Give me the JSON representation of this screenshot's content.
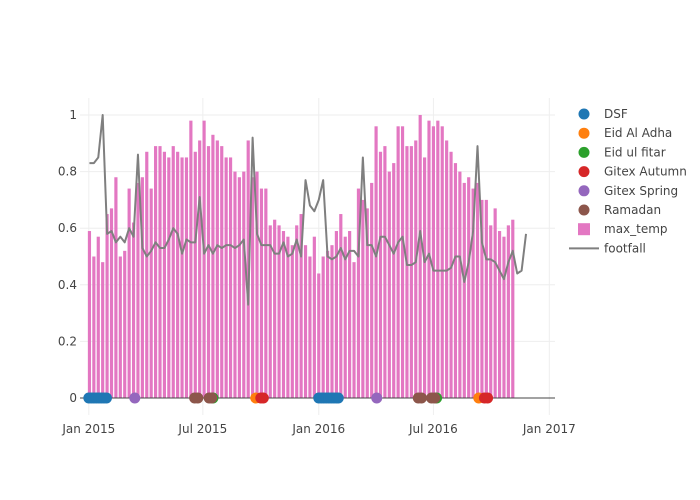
{
  "chart_data": {
    "type": "bar",
    "title": "",
    "xlabel": "",
    "ylabel": "",
    "x_range": [
      "2014-12-18",
      "2017-01-10"
    ],
    "ylim": [
      -0.06,
      1.06
    ],
    "y_ticks": [
      0,
      0.2,
      0.4,
      0.6,
      0.8,
      1
    ],
    "y_tick_labels": [
      "0",
      "0.2",
      "0.4",
      "0.6",
      "0.8",
      "1"
    ],
    "x_ticks": [
      "2015-01-01",
      "2015-07-01",
      "2016-01-01",
      "2016-07-01",
      "2017-01-01"
    ],
    "x_tick_labels": [
      "Jan 2015",
      "Jul 2015",
      "Jan 2016",
      "Jul 2016",
      "Jan 2017"
    ],
    "grid": true,
    "legend_position": "right",
    "bar_series": {
      "name": "max_temp",
      "color": "#e377c2",
      "start": "2015-01-02",
      "step_days": 7,
      "values": [
        0.59,
        0.5,
        0.57,
        0.48,
        0.65,
        0.67,
        0.78,
        0.5,
        0.52,
        0.74,
        0.62,
        0.76,
        0.78,
        0.87,
        0.74,
        0.89,
        0.89,
        0.87,
        0.85,
        0.89,
        0.87,
        0.85,
        0.85,
        0.98,
        0.87,
        0.91,
        0.98,
        0.89,
        0.93,
        0.91,
        0.89,
        0.85,
        0.85,
        0.8,
        0.78,
        0.8,
        0.91,
        0.78,
        0.8,
        0.74,
        0.74,
        0.61,
        0.63,
        0.61,
        0.59,
        0.57,
        0.54,
        0.61,
        0.65,
        0.54,
        0.5,
        0.57,
        0.44,
        0.5,
        0.52,
        0.54,
        0.59,
        0.65,
        0.57,
        0.59,
        0.48,
        0.74,
        0.7,
        0.67,
        0.76,
        0.96,
        0.87,
        0.89,
        0.8,
        0.83,
        0.96,
        0.96,
        0.89,
        0.89,
        0.91,
        1.0,
        0.85,
        0.98,
        0.96,
        0.98,
        0.96,
        0.91,
        0.87,
        0.83,
        0.8,
        0.76,
        0.78,
        0.74,
        0.76,
        0.7,
        0.7,
        0.61,
        0.67,
        0.59,
        0.57,
        0.61,
        0.63
      ]
    },
    "line_series": {
      "name": "footfall",
      "color": "#7f7f7f",
      "start": "2015-01-02",
      "step_days": 7,
      "values": [
        0.83,
        0.83,
        0.85,
        1.0,
        0.58,
        0.59,
        0.55,
        0.57,
        0.55,
        0.6,
        0.57,
        0.86,
        0.53,
        0.5,
        0.52,
        0.55,
        0.53,
        0.53,
        0.56,
        0.6,
        0.58,
        0.51,
        0.56,
        0.55,
        0.55,
        0.71,
        0.51,
        0.54,
        0.51,
        0.54,
        0.53,
        0.54,
        0.54,
        0.53,
        0.54,
        0.56,
        0.33,
        0.92,
        0.58,
        0.54,
        0.54,
        0.54,
        0.51,
        0.51,
        0.55,
        0.5,
        0.51,
        0.56,
        0.5,
        0.77,
        0.68,
        0.66,
        0.7,
        0.77,
        0.5,
        0.49,
        0.5,
        0.53,
        0.49,
        0.52,
        0.52,
        0.5,
        0.85,
        0.54,
        0.54,
        0.5,
        0.57,
        0.57,
        0.54,
        0.51,
        0.55,
        0.57,
        0.47,
        0.47,
        0.48,
        0.59,
        0.48,
        0.51,
        0.45,
        0.45,
        0.45,
        0.45,
        0.46,
        0.5,
        0.5,
        0.41,
        0.48,
        0.59,
        0.89,
        0.55,
        0.49,
        0.49,
        0.48,
        0.45,
        0.42,
        0.48,
        0.52,
        0.44,
        0.45,
        0.58
      ]
    },
    "events": [
      {
        "name": "DSF",
        "color": "#1f77b4",
        "dates": [
          "2015-01-01",
          "2015-01-05",
          "2015-01-09",
          "2015-01-13",
          "2015-01-17",
          "2015-01-21",
          "2015-01-25",
          "2015-01-29",
          "2016-01-01",
          "2016-01-05",
          "2016-01-09",
          "2016-01-13",
          "2016-01-17",
          "2016-01-21",
          "2016-01-25",
          "2016-01-29",
          "2016-02-01"
        ]
      },
      {
        "name": "Eid Al Adha",
        "color": "#ff7f0e",
        "dates": [
          "2015-09-23",
          "2016-09-11"
        ]
      },
      {
        "name": "Eid ul fitar",
        "color": "#2ca02c",
        "dates": [
          "2015-07-17",
          "2016-07-06"
        ]
      },
      {
        "name": "Gitex Autumn",
        "color": "#d62728",
        "dates": [
          "2015-10-01",
          "2015-10-05",
          "2016-09-20",
          "2016-09-25"
        ]
      },
      {
        "name": "Gitex Spring",
        "color": "#9467bd",
        "dates": [
          "2015-03-15",
          "2016-04-02"
        ]
      },
      {
        "name": "Ramadan",
        "color": "#8c564b",
        "dates": [
          "2015-06-18",
          "2015-06-23",
          "2015-07-11",
          "2015-07-15",
          "2016-06-07",
          "2016-06-12",
          "2016-06-28",
          "2016-07-03"
        ]
      }
    ],
    "legend": [
      "DSF",
      "Eid Al Adha",
      "Eid ul fitar",
      "Gitex Autumn",
      "Gitex Spring",
      "Ramadan",
      "max_temp",
      "footfall"
    ]
  }
}
